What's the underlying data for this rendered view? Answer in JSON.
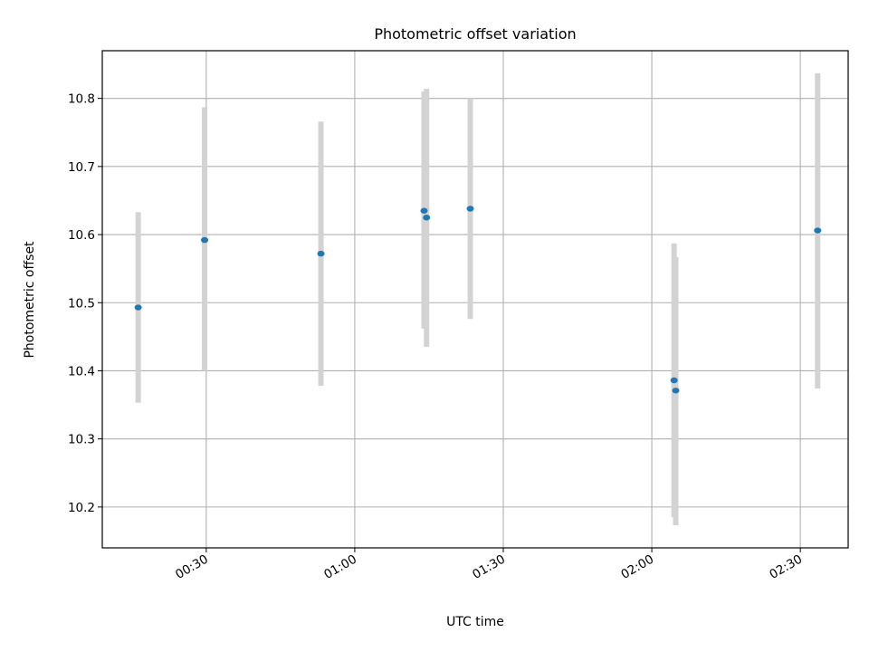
{
  "chart_data": {
    "type": "scatter",
    "title": "Photometric offset variation",
    "xlabel": "UTC time",
    "ylabel": "Photometric offset",
    "x_unit": "UTC time (HH:MM)",
    "xlim": [
      "00:09:00",
      "02:39:40"
    ],
    "ylim": [
      10.14,
      10.87
    ],
    "xticks": [
      "00:30",
      "01:00",
      "01:30",
      "02:00",
      "02:30"
    ],
    "yticks": [
      10.2,
      10.3,
      10.4,
      10.5,
      10.6,
      10.7,
      10.8
    ],
    "grid": true,
    "legend": "none",
    "marker_color": "#1f77b4",
    "errorbar_color": "#d3d3d3",
    "points": [
      {
        "x": "00:16:15",
        "y": 10.493,
        "ylow": 10.353,
        "yhigh": 10.633
      },
      {
        "x": "00:29:40",
        "y": 10.592,
        "ylow": 10.4,
        "yhigh": 10.787
      },
      {
        "x": "00:53:10",
        "y": 10.572,
        "ylow": 10.378,
        "yhigh": 10.766
      },
      {
        "x": "01:14:00",
        "y": 10.635,
        "ylow": 10.462,
        "yhigh": 10.81
      },
      {
        "x": "01:14:30",
        "y": 10.625,
        "ylow": 10.435,
        "yhigh": 10.814
      },
      {
        "x": "01:23:20",
        "y": 10.638,
        "ylow": 10.476,
        "yhigh": 10.8
      },
      {
        "x": "02:04:30",
        "y": 10.386,
        "ylow": 10.185,
        "yhigh": 10.587
      },
      {
        "x": "02:04:50",
        "y": 10.371,
        "ylow": 10.173,
        "yhigh": 10.567
      },
      {
        "x": "02:33:30",
        "y": 10.606,
        "ylow": 10.374,
        "yhigh": 10.837
      }
    ]
  }
}
